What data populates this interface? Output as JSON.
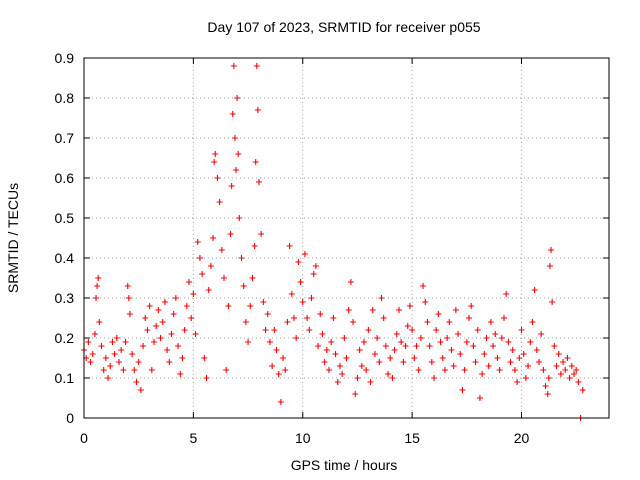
{
  "chart_data": {
    "type": "scatter",
    "title": "Day 107 of 2023, SRMTID for receiver p055",
    "xlabel": "GPS time / hours",
    "ylabel": "SRMTID / TECUs",
    "xlim": [
      0,
      24
    ],
    "ylim": [
      0,
      0.9
    ],
    "x_ticks": [
      0,
      5,
      10,
      15,
      20
    ],
    "x_tick_labels": [
      "0",
      "5",
      "10",
      "15",
      "20"
    ],
    "y_ticks": [
      0,
      0.1,
      0.2,
      0.3,
      0.4,
      0.5,
      0.6,
      0.7,
      0.8,
      0.9
    ],
    "y_tick_labels": [
      "0",
      "0.1",
      "0.2",
      "0.3",
      "0.4",
      "0.5",
      "0.6",
      "0.7",
      "0.8",
      "0.9"
    ],
    "grid": true,
    "marker": "plus",
    "color": "#ff0000",
    "series": [
      {
        "name": "SRMTID",
        "points": [
          [
            0.0,
            0.17
          ],
          [
            0.1,
            0.15
          ],
          [
            0.2,
            0.19
          ],
          [
            0.3,
            0.14
          ],
          [
            0.4,
            0.16
          ],
          [
            0.5,
            0.21
          ],
          [
            0.55,
            0.3
          ],
          [
            0.6,
            0.33
          ],
          [
            0.65,
            0.35
          ],
          [
            0.7,
            0.24
          ],
          [
            0.8,
            0.18
          ],
          [
            0.9,
            0.12
          ],
          [
            1.0,
            0.15
          ],
          [
            1.1,
            0.1
          ],
          [
            1.2,
            0.13
          ],
          [
            1.3,
            0.19
          ],
          [
            1.4,
            0.16
          ],
          [
            1.5,
            0.2
          ],
          [
            1.6,
            0.14
          ],
          [
            1.7,
            0.17
          ],
          [
            1.8,
            0.12
          ],
          [
            1.9,
            0.19
          ],
          [
            2.0,
            0.33
          ],
          [
            2.05,
            0.3
          ],
          [
            2.1,
            0.26
          ],
          [
            2.2,
            0.16
          ],
          [
            2.3,
            0.12
          ],
          [
            2.4,
            0.09
          ],
          [
            2.5,
            0.14
          ],
          [
            2.6,
            0.07
          ],
          [
            2.7,
            0.18
          ],
          [
            2.8,
            0.25
          ],
          [
            2.9,
            0.22
          ],
          [
            3.0,
            0.28
          ],
          [
            3.1,
            0.12
          ],
          [
            3.2,
            0.19
          ],
          [
            3.3,
            0.23
          ],
          [
            3.4,
            0.27
          ],
          [
            3.5,
            0.2
          ],
          [
            3.6,
            0.24
          ],
          [
            3.7,
            0.29
          ],
          [
            3.8,
            0.17
          ],
          [
            3.9,
            0.14
          ],
          [
            4.0,
            0.21
          ],
          [
            4.1,
            0.26
          ],
          [
            4.2,
            0.3
          ],
          [
            4.3,
            0.18
          ],
          [
            4.4,
            0.11
          ],
          [
            4.5,
            0.15
          ],
          [
            4.6,
            0.22
          ],
          [
            4.7,
            0.28
          ],
          [
            4.8,
            0.34
          ],
          [
            4.9,
            0.25
          ],
          [
            5.0,
            0.31
          ],
          [
            5.1,
            0.21
          ],
          [
            5.2,
            0.44
          ],
          [
            5.3,
            0.4
          ],
          [
            5.4,
            0.36
          ],
          [
            5.5,
            0.15
          ],
          [
            5.6,
            0.1
          ],
          [
            5.7,
            0.32
          ],
          [
            5.8,
            0.38
          ],
          [
            5.9,
            0.45
          ],
          [
            5.95,
            0.64
          ],
          [
            6.0,
            0.66
          ],
          [
            6.1,
            0.6
          ],
          [
            6.2,
            0.54
          ],
          [
            6.3,
            0.42
          ],
          [
            6.4,
            0.35
          ],
          [
            6.5,
            0.12
          ],
          [
            6.6,
            0.28
          ],
          [
            6.7,
            0.46
          ],
          [
            6.75,
            0.58
          ],
          [
            6.8,
            0.76
          ],
          [
            6.85,
            0.88
          ],
          [
            6.9,
            0.7
          ],
          [
            6.95,
            0.62
          ],
          [
            7.0,
            0.8
          ],
          [
            7.05,
            0.66
          ],
          [
            7.1,
            0.5
          ],
          [
            7.2,
            0.4
          ],
          [
            7.3,
            0.33
          ],
          [
            7.4,
            0.24
          ],
          [
            7.5,
            0.19
          ],
          [
            7.6,
            0.28
          ],
          [
            7.7,
            0.35
          ],
          [
            7.8,
            0.43
          ],
          [
            7.85,
            0.64
          ],
          [
            7.9,
            0.88
          ],
          [
            7.95,
            0.77
          ],
          [
            8.0,
            0.59
          ],
          [
            8.1,
            0.46
          ],
          [
            8.2,
            0.29
          ],
          [
            8.3,
            0.22
          ],
          [
            8.4,
            0.26
          ],
          [
            8.5,
            0.19
          ],
          [
            8.6,
            0.13
          ],
          [
            8.7,
            0.22
          ],
          [
            8.8,
            0.17
          ],
          [
            8.9,
            0.11
          ],
          [
            9.0,
            0.04
          ],
          [
            9.1,
            0.15
          ],
          [
            9.2,
            0.12
          ],
          [
            9.3,
            0.24
          ],
          [
            9.4,
            0.43
          ],
          [
            9.5,
            0.31
          ],
          [
            9.6,
            0.25
          ],
          [
            9.7,
            0.2
          ],
          [
            9.8,
            0.39
          ],
          [
            9.9,
            0.34
          ],
          [
            10.0,
            0.29
          ],
          [
            10.1,
            0.41
          ],
          [
            10.2,
            0.25
          ],
          [
            10.3,
            0.22
          ],
          [
            10.4,
            0.3
          ],
          [
            10.5,
            0.36
          ],
          [
            10.6,
            0.38
          ],
          [
            10.7,
            0.18
          ],
          [
            10.8,
            0.26
          ],
          [
            10.9,
            0.21
          ],
          [
            11.0,
            0.14
          ],
          [
            11.1,
            0.17
          ],
          [
            11.2,
            0.12
          ],
          [
            11.3,
            0.19
          ],
          [
            11.4,
            0.25
          ],
          [
            11.5,
            0.16
          ],
          [
            11.6,
            0.09
          ],
          [
            11.7,
            0.13
          ],
          [
            11.8,
            0.11
          ],
          [
            11.9,
            0.2
          ],
          [
            12.0,
            0.15
          ],
          [
            12.1,
            0.27
          ],
          [
            12.2,
            0.34
          ],
          [
            12.3,
            0.24
          ],
          [
            12.4,
            0.06
          ],
          [
            12.5,
            0.1
          ],
          [
            12.6,
            0.17
          ],
          [
            12.7,
            0.13
          ],
          [
            12.8,
            0.19
          ],
          [
            12.9,
            0.12
          ],
          [
            13.0,
            0.22
          ],
          [
            13.1,
            0.09
          ],
          [
            13.2,
            0.27
          ],
          [
            13.3,
            0.16
          ],
          [
            13.4,
            0.2
          ],
          [
            13.5,
            0.14
          ],
          [
            13.6,
            0.3
          ],
          [
            13.7,
            0.25
          ],
          [
            13.8,
            0.18
          ],
          [
            13.9,
            0.11
          ],
          [
            14.0,
            0.15
          ],
          [
            14.1,
            0.1
          ],
          [
            14.2,
            0.17
          ],
          [
            14.3,
            0.21
          ],
          [
            14.4,
            0.27
          ],
          [
            14.5,
            0.19
          ],
          [
            14.6,
            0.14
          ],
          [
            14.7,
            0.18
          ],
          [
            14.8,
            0.23
          ],
          [
            14.9,
            0.28
          ],
          [
            15.0,
            0.22
          ],
          [
            15.1,
            0.15
          ],
          [
            15.2,
            0.18
          ],
          [
            15.3,
            0.12
          ],
          [
            15.4,
            0.2
          ],
          [
            15.5,
            0.33
          ],
          [
            15.6,
            0.29
          ],
          [
            15.7,
            0.24
          ],
          [
            15.8,
            0.18
          ],
          [
            15.9,
            0.14
          ],
          [
            16.0,
            0.1
          ],
          [
            16.1,
            0.22
          ],
          [
            16.2,
            0.26
          ],
          [
            16.3,
            0.19
          ],
          [
            16.4,
            0.15
          ],
          [
            16.5,
            0.12
          ],
          [
            16.6,
            0.2
          ],
          [
            16.7,
            0.24
          ],
          [
            16.8,
            0.17
          ],
          [
            16.9,
            0.13
          ],
          [
            17.0,
            0.27
          ],
          [
            17.1,
            0.21
          ],
          [
            17.2,
            0.16
          ],
          [
            17.3,
            0.07
          ],
          [
            17.4,
            0.12
          ],
          [
            17.5,
            0.19
          ],
          [
            17.6,
            0.25
          ],
          [
            17.7,
            0.28
          ],
          [
            17.8,
            0.18
          ],
          [
            17.9,
            0.14
          ],
          [
            18.0,
            0.22
          ],
          [
            18.1,
            0.05
          ],
          [
            18.2,
            0.11
          ],
          [
            18.3,
            0.16
          ],
          [
            18.4,
            0.2
          ],
          [
            18.5,
            0.13
          ],
          [
            18.6,
            0.24
          ],
          [
            18.7,
            0.18
          ],
          [
            18.8,
            0.21
          ],
          [
            18.9,
            0.15
          ],
          [
            19.0,
            0.12
          ],
          [
            19.1,
            0.2
          ],
          [
            19.2,
            0.25
          ],
          [
            19.3,
            0.31
          ],
          [
            19.4,
            0.19
          ],
          [
            19.5,
            0.14
          ],
          [
            19.6,
            0.17
          ],
          [
            19.7,
            0.12
          ],
          [
            19.8,
            0.09
          ],
          [
            19.9,
            0.15
          ],
          [
            20.0,
            0.22
          ],
          [
            20.1,
            0.16
          ],
          [
            20.2,
            0.1
          ],
          [
            20.3,
            0.13
          ],
          [
            20.4,
            0.19
          ],
          [
            20.5,
            0.24
          ],
          [
            20.6,
            0.32
          ],
          [
            20.7,
            0.17
          ],
          [
            20.8,
            0.14
          ],
          [
            20.9,
            0.21
          ],
          [
            21.0,
            0.12
          ],
          [
            21.1,
            0.08
          ],
          [
            21.2,
            0.06
          ],
          [
            21.25,
            0.1
          ],
          [
            21.3,
            0.38
          ],
          [
            21.35,
            0.42
          ],
          [
            21.4,
            0.29
          ],
          [
            21.5,
            0.18
          ],
          [
            21.6,
            0.13
          ],
          [
            21.7,
            0.16
          ],
          [
            21.8,
            0.11
          ],
          [
            21.9,
            0.14
          ],
          [
            22.0,
            0.12
          ],
          [
            22.1,
            0.15
          ],
          [
            22.2,
            0.1
          ],
          [
            22.3,
            0.13
          ],
          [
            22.4,
            0.11
          ],
          [
            22.5,
            0.12
          ],
          [
            22.6,
            0.09
          ],
          [
            22.8,
            0.07
          ],
          [
            22.7,
            0.0
          ]
        ]
      }
    ]
  }
}
